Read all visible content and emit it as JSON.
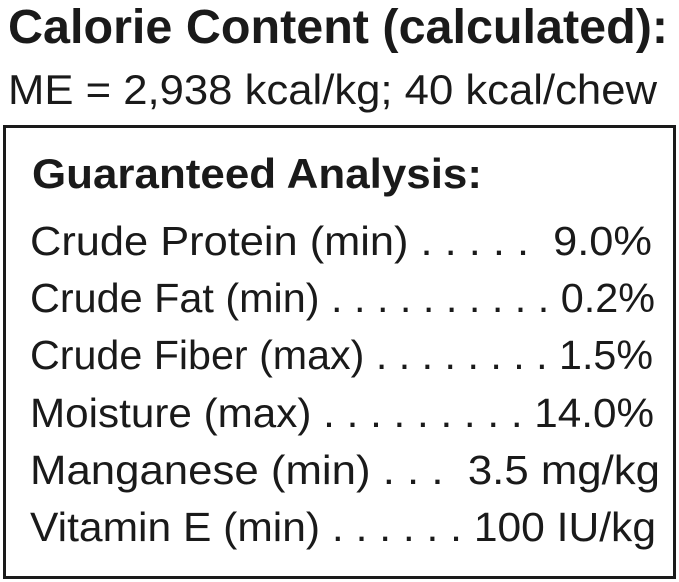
{
  "calorie": {
    "title": "Calorie Content (calculated):",
    "value": "ME = 2,938 kcal/kg; 40 kcal/chew"
  },
  "analysis": {
    "heading": "Guaranteed Analysis:",
    "rows": [
      {
        "label": "Crude Protein (min)",
        "dots": " . . . . .  ",
        "value": "9.0%"
      },
      {
        "label": "Crude Fat (min)",
        "dots": " . . . . . . . . . . ",
        "value": "0.2%"
      },
      {
        "label": "Crude Fiber (max)",
        "dots": " . . . . . . . . ",
        "value": "1.5%"
      },
      {
        "label": "Moisture (max)",
        "dots": " . . . . . . . . . ",
        "value": "14.0%"
      },
      {
        "label": "Manganese (min)",
        "dots": " . . .  ",
        "value": "3.5 mg/kg"
      },
      {
        "label": "Vitamin E (min)",
        "dots": " . . . . . . ",
        "value": "100 IU/kg"
      }
    ]
  }
}
